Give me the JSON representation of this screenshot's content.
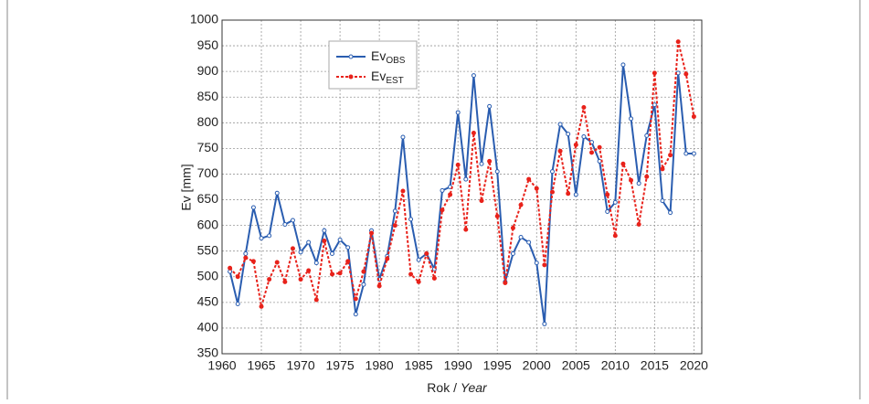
{
  "chart_data": {
    "type": "line",
    "ylabel": "Ev [mm]",
    "xlabel": "Rok /",
    "xlabel_italic": "Year",
    "x": [
      1961,
      1962,
      1963,
      1964,
      1965,
      1966,
      1967,
      1968,
      1969,
      1970,
      1971,
      1972,
      1973,
      1974,
      1975,
      1976,
      1977,
      1978,
      1979,
      1980,
      1981,
      1982,
      1983,
      1984,
      1985,
      1986,
      1987,
      1988,
      1989,
      1990,
      1991,
      1992,
      1993,
      1994,
      1995,
      1996,
      1997,
      1998,
      1999,
      2000,
      2001,
      2002,
      2003,
      2004,
      2005,
      2006,
      2007,
      2008,
      2009,
      2010,
      2011,
      2012,
      2013,
      2014,
      2015,
      2016,
      2017,
      2018,
      2019,
      2020
    ],
    "series": [
      {
        "name": "Ev",
        "subscript": "OBS",
        "color": "#2a5db0",
        "style": "solid",
        "values": [
          510,
          447,
          545,
          635,
          575,
          580,
          663,
          602,
          610,
          548,
          567,
          527,
          590,
          545,
          572,
          557,
          427,
          485,
          590,
          495,
          540,
          628,
          772,
          612,
          533,
          545,
          515,
          668,
          675,
          820,
          690,
          892,
          720,
          832,
          705,
          490,
          545,
          577,
          567,
          527,
          408,
          705,
          797,
          778,
          660,
          773,
          762,
          725,
          627,
          645,
          913,
          808,
          682,
          775,
          835,
          648,
          625,
          897,
          740,
          740
        ]
      },
      {
        "name": "Ev",
        "subscript": "EST",
        "color": "#e8221b",
        "style": "dotted",
        "values": [
          517,
          500,
          537,
          530,
          442,
          495,
          528,
          490,
          555,
          495,
          512,
          455,
          570,
          505,
          507,
          530,
          457,
          510,
          585,
          482,
          535,
          600,
          667,
          505,
          490,
          545,
          497,
          630,
          660,
          718,
          592,
          780,
          648,
          725,
          618,
          488,
          595,
          640,
          690,
          672,
          523,
          665,
          745,
          662,
          757,
          830,
          742,
          752,
          660,
          580,
          720,
          688,
          602,
          695,
          897,
          710,
          737,
          958,
          895,
          812
        ]
      }
    ],
    "xlim": [
      1960,
      2021
    ],
    "ylim": [
      350,
      1000
    ],
    "xticks": [
      1960,
      1965,
      1970,
      1975,
      1980,
      1985,
      1990,
      1995,
      2000,
      2005,
      2010,
      2015,
      2020
    ],
    "yticks": [
      350,
      400,
      450,
      500,
      550,
      600,
      650,
      700,
      750,
      800,
      850,
      900,
      950,
      1000
    ],
    "grid": true
  }
}
